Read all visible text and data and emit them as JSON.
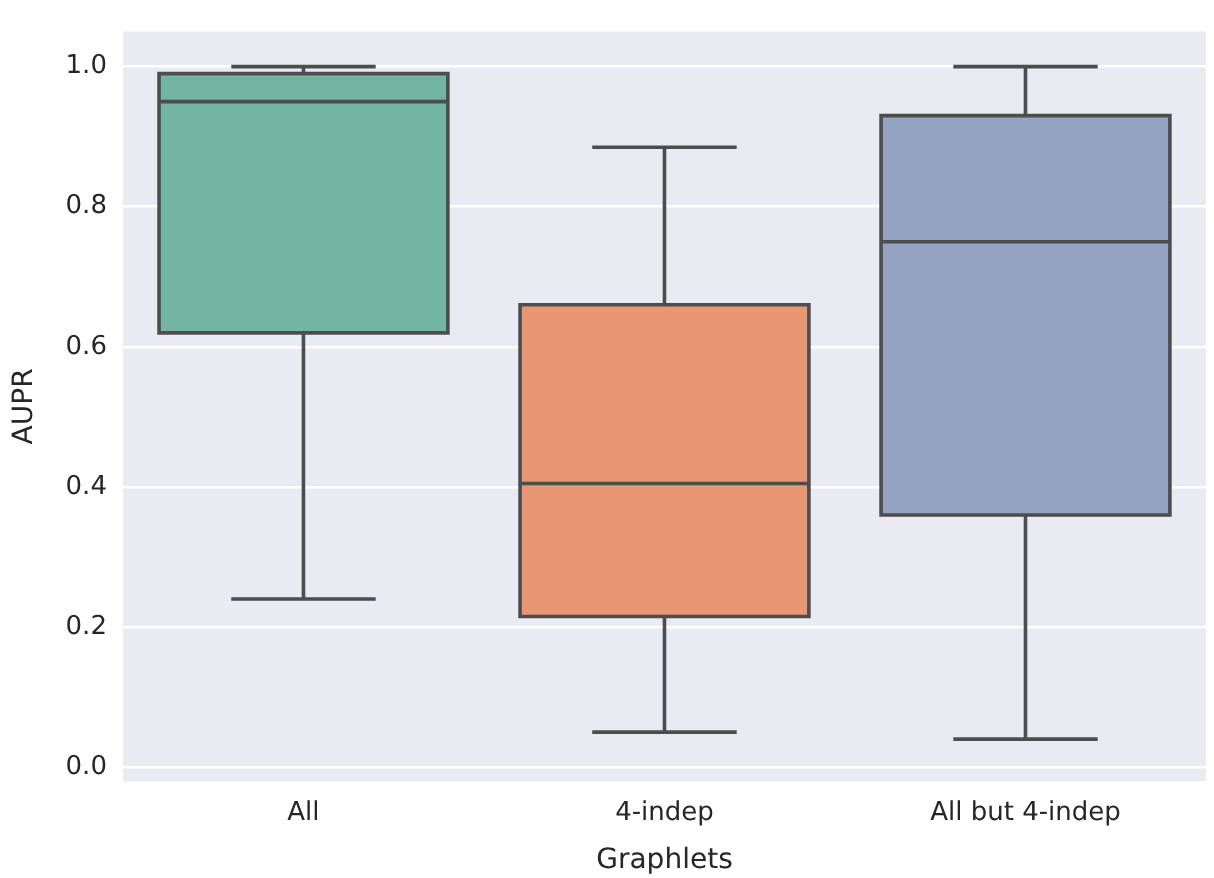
{
  "chart_data": {
    "type": "box",
    "xlabel": "Graphlets",
    "ylabel": "AUPR",
    "categories": [
      "All",
      "4-indep",
      "All but 4-indep"
    ],
    "colors": [
      "#72b6a1",
      "#e99675",
      "#95a3c3"
    ],
    "boxes": [
      {
        "low": 0.24,
        "q1": 0.62,
        "median": 0.95,
        "q3": 0.99,
        "high": 1.0
      },
      {
        "low": 0.05,
        "q1": 0.215,
        "median": 0.405,
        "q3": 0.66,
        "high": 0.885
      },
      {
        "low": 0.04,
        "q1": 0.36,
        "median": 0.75,
        "q3": 0.93,
        "high": 1.0
      }
    ],
    "ylim": [
      -0.02,
      1.05
    ],
    "yticks": [
      {
        "value": 0,
        "label": "0.0"
      },
      0.2,
      0.4,
      0.6,
      0.8,
      {
        "value": 1,
        "label": "1.0"
      }
    ],
    "grid": "y"
  }
}
